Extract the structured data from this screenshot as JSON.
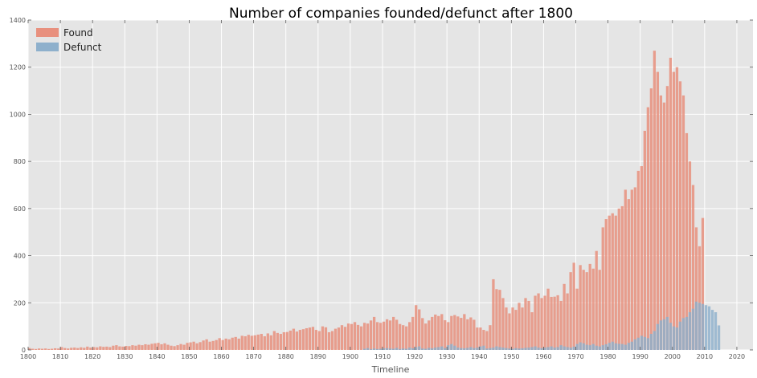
{
  "chart_data": {
    "type": "bar",
    "title": "Number of companies founded/defunct after 1800",
    "xlabel": "Timeline",
    "ylabel": "",
    "xlim": [
      1800,
      2025
    ],
    "ylim": [
      0,
      1400
    ],
    "xticks": [
      1800,
      1810,
      1820,
      1830,
      1840,
      1850,
      1860,
      1870,
      1880,
      1890,
      1900,
      1910,
      1920,
      1930,
      1940,
      1950,
      1960,
      1970,
      1980,
      1990,
      2000,
      2010,
      2020
    ],
    "yticks": [
      0,
      200,
      400,
      600,
      800,
      1000,
      1200,
      1400
    ],
    "grid": true,
    "legend_position": "top-left",
    "colors": {
      "Found": "#e8907e",
      "Defunct": "#8eb0cc",
      "background": "#e5e5e5",
      "grid": "#ffffff"
    },
    "x_start": 1800,
    "series": [
      {
        "name": "Found",
        "values": [
          8,
          5,
          4,
          6,
          5,
          6,
          4,
          5,
          7,
          6,
          12,
          8,
          6,
          9,
          10,
          8,
          11,
          9,
          14,
          10,
          12,
          11,
          15,
          13,
          14,
          12,
          18,
          20,
          15,
          14,
          17,
          16,
          20,
          18,
          22,
          20,
          24,
          22,
          26,
          28,
          30,
          24,
          28,
          22,
          18,
          16,
          20,
          25,
          22,
          30,
          32,
          35,
          28,
          33,
          40,
          45,
          35,
          38,
          42,
          50,
          42,
          48,
          45,
          52,
          55,
          48,
          60,
          58,
          64,
          60,
          62,
          65,
          68,
          58,
          70,
          62,
          80,
          72,
          68,
          75,
          76,
          82,
          90,
          78,
          85,
          88,
          92,
          95,
          98,
          85,
          80,
          100,
          96,
          75,
          80,
          90,
          95,
          105,
          98,
          112,
          110,
          118,
          106,
          100,
          115,
          112,
          125,
          140,
          118,
          115,
          120,
          130,
          125,
          140,
          128,
          110,
          105,
          100,
          118,
          140,
          190,
          172,
          135,
          112,
          125,
          140,
          150,
          144,
          152,
          126,
          118,
          144,
          148,
          142,
          136,
          152,
          130,
          138,
          128,
          95,
          95,
          85,
          80,
          105,
          300,
          258,
          255,
          220,
          180,
          155,
          180,
          170,
          200,
          180,
          220,
          208,
          160,
          230,
          240,
          220,
          230,
          260,
          225,
          226,
          232,
          208,
          280,
          240,
          330,
          370,
          260,
          360,
          340,
          330,
          365,
          345,
          420,
          340,
          520,
          555,
          570,
          580,
          570,
          600,
          610,
          680,
          640,
          680,
          690,
          760,
          780,
          930,
          1030,
          1110,
          1270,
          1180,
          1080,
          1050,
          1120,
          1240,
          1180,
          1200,
          1140,
          1080,
          920,
          800,
          700,
          520,
          440,
          560
        ]
      },
      {
        "name": "Defunct",
        "values": [
          0,
          0,
          0,
          0,
          0,
          0,
          0,
          0,
          0,
          0,
          0,
          0,
          0,
          0,
          0,
          0,
          0,
          0,
          0,
          0,
          0,
          0,
          0,
          0,
          0,
          0,
          0,
          0,
          0,
          0,
          0,
          0,
          0,
          0,
          0,
          0,
          0,
          0,
          0,
          0,
          0,
          0,
          0,
          0,
          0,
          0,
          0,
          0,
          0,
          0,
          0,
          0,
          0,
          0,
          0,
          0,
          0,
          0,
          0,
          0,
          0,
          0,
          0,
          0,
          0,
          0,
          0,
          0,
          0,
          0,
          0,
          0,
          0,
          0,
          0,
          0,
          0,
          0,
          0,
          0,
          0,
          0,
          0,
          0,
          0,
          0,
          0,
          0,
          0,
          0,
          0,
          0,
          0,
          0,
          0,
          0,
          0,
          0,
          0,
          0,
          0,
          0,
          0,
          0,
          5,
          8,
          3,
          6,
          4,
          5,
          7,
          8,
          6,
          5,
          9,
          4,
          6,
          5,
          10,
          7,
          12,
          15,
          6,
          5,
          9,
          7,
          10,
          12,
          15,
          8,
          20,
          25,
          18,
          10,
          8,
          7,
          9,
          12,
          8,
          10,
          15,
          18,
          6,
          8,
          10,
          15,
          12,
          10,
          8,
          6,
          5,
          8,
          6,
          7,
          9,
          10,
          12,
          15,
          10,
          8,
          10,
          12,
          15,
          10,
          12,
          20,
          15,
          12,
          10,
          14,
          25,
          32,
          28,
          22,
          20,
          25,
          18,
          15,
          20,
          24,
          30,
          35,
          28,
          26,
          25,
          22,
          30,
          35,
          45,
          52,
          60,
          55,
          50,
          68,
          80,
          110,
          125,
          130,
          140,
          115,
          100,
          95,
          120,
          135,
          140,
          160,
          175,
          205,
          200,
          195,
          190,
          185,
          170,
          160,
          104
        ]
      }
    ]
  }
}
